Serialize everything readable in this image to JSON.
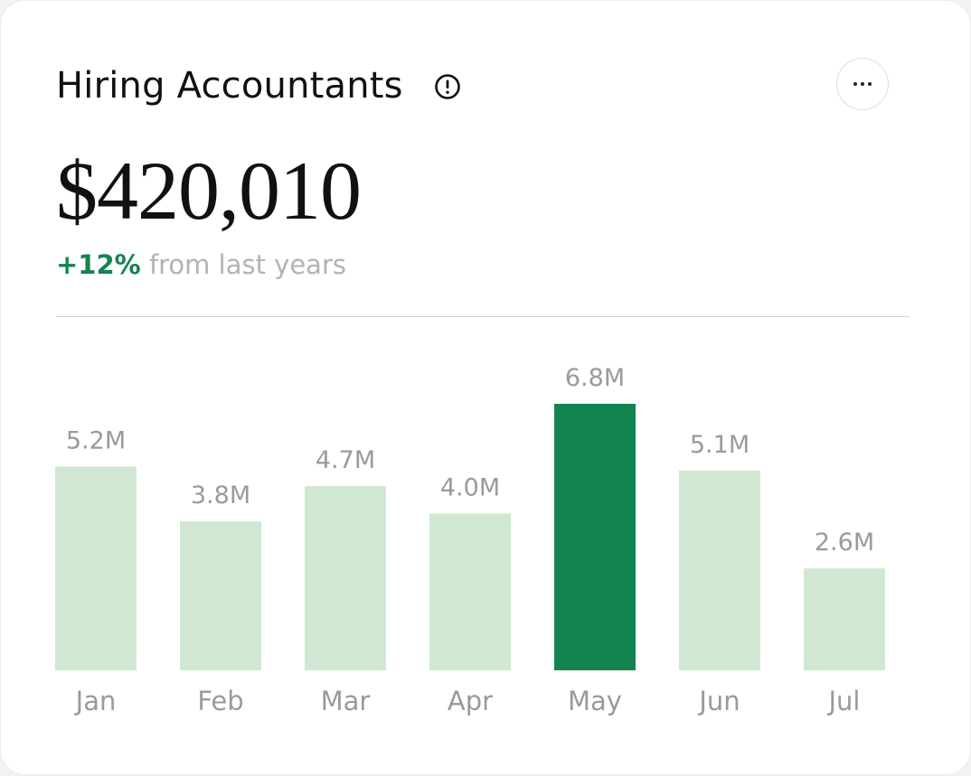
{
  "header": {
    "title": "Hiring Accountants",
    "info_icon": "info-circle-icon",
    "more_icon": "more-horizontal-icon"
  },
  "summary": {
    "amount": "$420,010",
    "change_value": "+12%",
    "change_text": "from last years"
  },
  "colors": {
    "bar": "#d0e7d1",
    "bar_highlight": "#13834f",
    "positive": "#14844f",
    "muted_text": "#9a9a9a"
  },
  "chart_data": {
    "type": "bar",
    "categories": [
      "Jan",
      "Feb",
      "Mar",
      "Apr",
      "May",
      "Jun",
      "Jul"
    ],
    "values": [
      5.2,
      3.8,
      4.7,
      4.0,
      6.8,
      5.1,
      2.6
    ],
    "value_labels": [
      "5.2M",
      "3.8M",
      "4.7M",
      "4.0M",
      "6.8M",
      "5.1M",
      "2.6M"
    ],
    "highlight_index": 4,
    "ylim": [
      0,
      7.3
    ],
    "grid": false,
    "legend": "none",
    "title": "",
    "xlabel": "",
    "ylabel": ""
  }
}
